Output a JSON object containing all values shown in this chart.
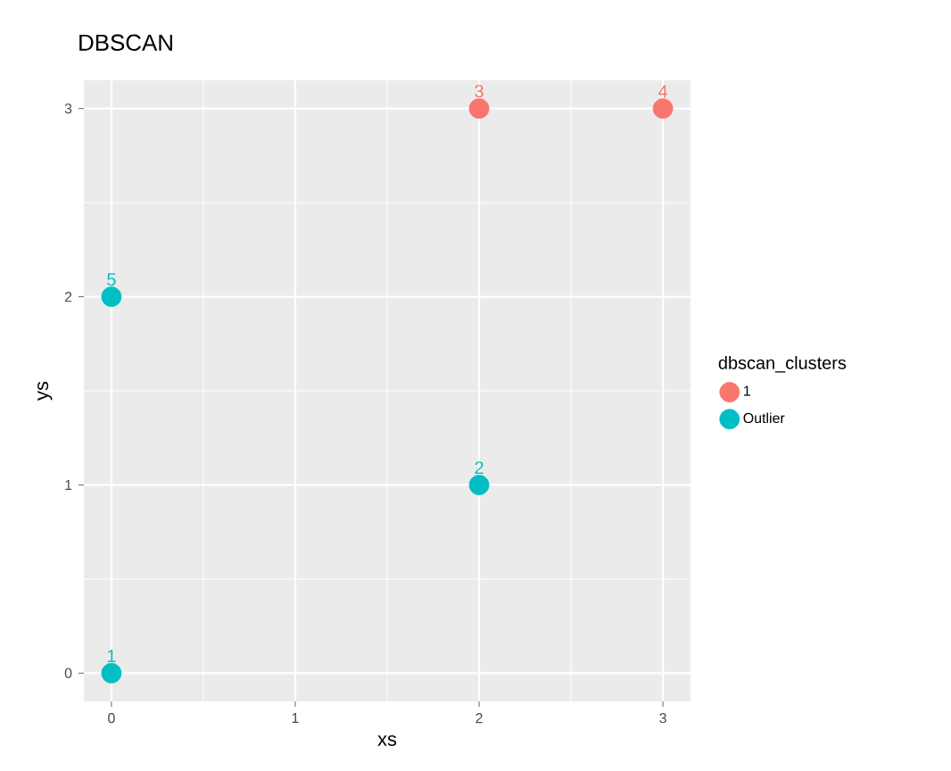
{
  "chart_data": {
    "type": "scatter",
    "title": "DBSCAN",
    "xlabel": "xs",
    "ylabel": "ys",
    "legend_title": "dbscan_clusters",
    "legend": "right",
    "grid": true,
    "marker": "circle",
    "xlim": [
      -0.15,
      3.15
    ],
    "ylim": [
      -0.15,
      3.15
    ],
    "xticks": [
      0,
      1,
      2,
      3
    ],
    "yticks": [
      0,
      1,
      2,
      3
    ],
    "series": [
      {
        "name": "1",
        "color": "#f8766d",
        "x": [
          2,
          3
        ],
        "values": [
          3,
          3
        ]
      },
      {
        "name": "Outlier",
        "color": "#00bfc4",
        "x": [
          0,
          2,
          0
        ],
        "values": [
          0,
          1,
          2
        ]
      }
    ],
    "annotations": [
      {
        "text": "1",
        "x": 0,
        "y": 0
      },
      {
        "text": "2",
        "x": 2,
        "y": 1
      },
      {
        "text": "3",
        "x": 2,
        "y": 3
      },
      {
        "text": "4",
        "x": 3,
        "y": 3
      },
      {
        "text": "5",
        "x": 0,
        "y": 2
      }
    ]
  }
}
